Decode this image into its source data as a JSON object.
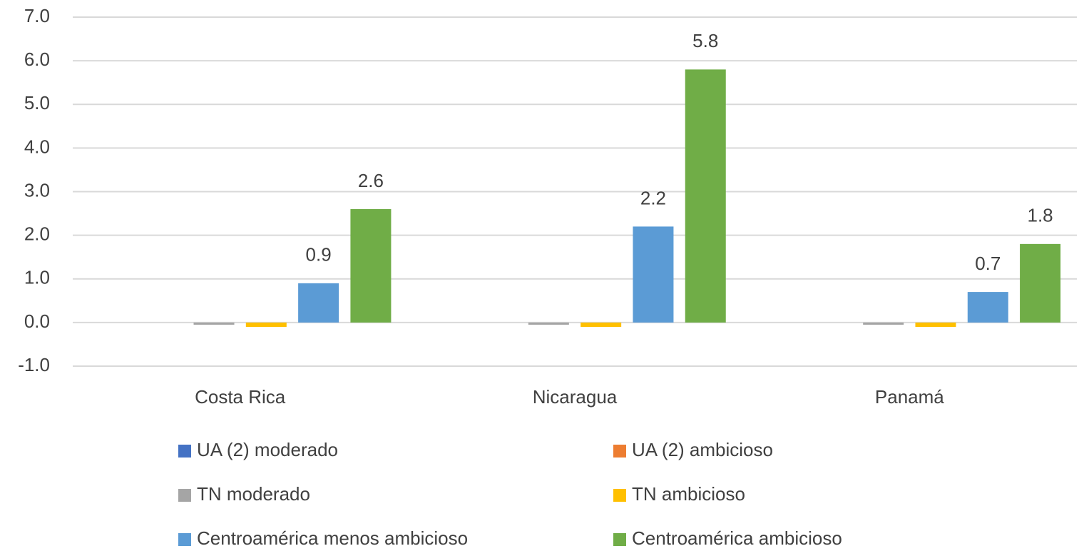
{
  "chart_data": {
    "type": "bar",
    "categories": [
      "Costa Rica",
      "Nicaragua",
      "Panamá"
    ],
    "series": [
      {
        "name": "UA (2) moderado",
        "color": "#4472c4",
        "values": [
          0,
          0,
          0
        ]
      },
      {
        "name": "UA (2) ambicioso",
        "color": "#ed7d31",
        "values": [
          0,
          0,
          0
        ]
      },
      {
        "name": "TN moderado",
        "color": "#a5a5a5",
        "values": [
          -0.05,
          -0.05,
          -0.05
        ]
      },
      {
        "name": "TN ambicioso",
        "color": "#ffc000",
        "values": [
          -0.1,
          -0.1,
          -0.1
        ]
      },
      {
        "name": "Centroamérica menos ambicioso",
        "color": "#5b9bd5",
        "values": [
          0.9,
          2.2,
          0.7
        ],
        "data_labels": true
      },
      {
        "name": "Centroamérica ambicioso",
        "color": "#70ad47",
        "values": [
          2.6,
          5.8,
          1.8
        ],
        "data_labels": true
      }
    ],
    "ylim": [
      -1,
      7
    ],
    "yticks": [
      {
        "value": -1,
        "label": "-1.0"
      },
      {
        "value": 0,
        "label": "0.0"
      },
      {
        "value": 1,
        "label": "1.0"
      },
      {
        "value": 2,
        "label": "2.0"
      },
      {
        "value": 3,
        "label": "3.0"
      },
      {
        "value": 4,
        "label": "4.0"
      },
      {
        "value": 5,
        "label": "5.0"
      },
      {
        "value": 6,
        "label": "6.0"
      },
      {
        "value": 7,
        "label": "7.0"
      }
    ],
    "grid": true
  }
}
